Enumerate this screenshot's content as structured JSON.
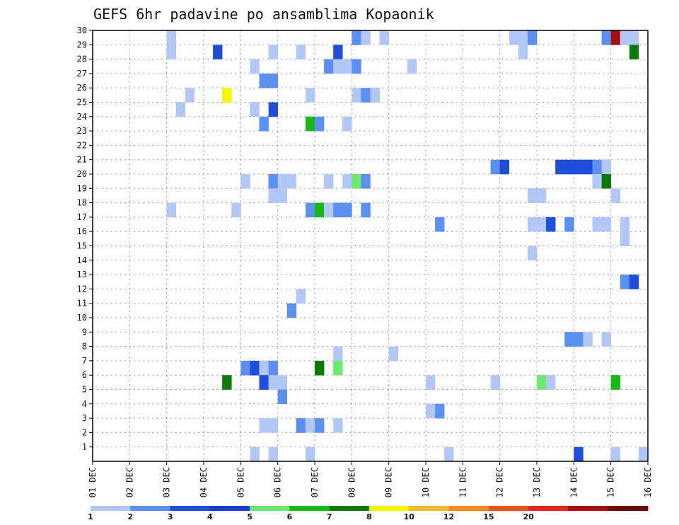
{
  "chart_data": {
    "type": "heatmap",
    "title": "GEFS 6hr padavine po ansamblima Kopaonik",
    "xlabel": "",
    "ylabel": "",
    "x_range": [
      0,
      60
    ],
    "y_range": [
      0,
      30
    ],
    "x_ticks": [
      {
        "label": "01 DEC",
        "x": 0
      },
      {
        "label": "02 DEC",
        "x": 4
      },
      {
        "label": "03 DEC",
        "x": 8
      },
      {
        "label": "04 DEC",
        "x": 12
      },
      {
        "label": "05 DEC",
        "x": 16
      },
      {
        "label": "06 DEC",
        "x": 20
      },
      {
        "label": "07 DEC",
        "x": 24
      },
      {
        "label": "08 DEC",
        "x": 28
      },
      {
        "label": "09 DEC",
        "x": 32
      },
      {
        "label": "10 DEC",
        "x": 36
      },
      {
        "label": "11 DEC",
        "x": 40
      },
      {
        "label": "12 DEC",
        "x": 44
      },
      {
        "label": "13 DEC",
        "x": 48
      },
      {
        "label": "14 DEC",
        "x": 52
      },
      {
        "label": "15 DEC",
        "x": 56
      },
      {
        "label": "16 DEC",
        "x": 60
      }
    ],
    "y_ticks": [
      "1",
      "2",
      "3",
      "4",
      "5",
      "6",
      "7",
      "8",
      "9",
      "10",
      "11",
      "12",
      "13",
      "14",
      "15",
      "16",
      "17",
      "18",
      "19",
      "20",
      "21",
      "22",
      "23",
      "24",
      "25",
      "26",
      "27",
      "28",
      "29",
      "30"
    ],
    "grid": true,
    "colorbar": {
      "placement": "bottom",
      "colors": [
        "#b3c7f7",
        "#5b8ff0",
        "#1f4fd8",
        "#1b3bd1",
        "#6fe86f",
        "#17b817",
        "#0b7a0b",
        "#f5f500",
        "#f5b83a",
        "#f58a1f",
        "#e8531f",
        "#d82a1f",
        "#a31010",
        "#6b0a0a"
      ],
      "labels": [
        "1",
        "2",
        "3",
        "4",
        "5",
        "6",
        "7",
        "8",
        "10",
        "12",
        "15",
        "20"
      ]
    },
    "cells": [
      {
        "x": 8,
        "y": 29,
        "c": 0
      },
      {
        "x": 28,
        "y": 29,
        "c": 1
      },
      {
        "x": 29,
        "y": 29,
        "c": 0
      },
      {
        "x": 31,
        "y": 29,
        "c": 0
      },
      {
        "x": 45,
        "y": 29,
        "c": 0
      },
      {
        "x": 46,
        "y": 29,
        "c": 0
      },
      {
        "x": 47,
        "y": 29,
        "c": 1
      },
      {
        "x": 55,
        "y": 29,
        "c": 1
      },
      {
        "x": 56,
        "y": 29,
        "c": 12
      },
      {
        "x": 57,
        "y": 29,
        "c": 0
      },
      {
        "x": 58,
        "y": 29,
        "c": 0
      },
      {
        "x": 8,
        "y": 28,
        "c": 0
      },
      {
        "x": 13,
        "y": 28,
        "c": 2
      },
      {
        "x": 19,
        "y": 28,
        "c": 0
      },
      {
        "x": 22,
        "y": 28,
        "c": 0
      },
      {
        "x": 26,
        "y": 28,
        "c": 2
      },
      {
        "x": 46,
        "y": 28,
        "c": 0
      },
      {
        "x": 58,
        "y": 28,
        "c": 6
      },
      {
        "x": 17,
        "y": 27,
        "c": 0
      },
      {
        "x": 25,
        "y": 27,
        "c": 1
      },
      {
        "x": 26,
        "y": 27,
        "c": 0
      },
      {
        "x": 27,
        "y": 27,
        "c": 0
      },
      {
        "x": 28,
        "y": 27,
        "c": 1
      },
      {
        "x": 34,
        "y": 27,
        "c": 0
      },
      {
        "x": 18,
        "y": 26,
        "c": 1
      },
      {
        "x": 19,
        "y": 26,
        "c": 1
      },
      {
        "x": 10,
        "y": 25,
        "c": 0
      },
      {
        "x": 14,
        "y": 25,
        "c": 7
      },
      {
        "x": 23,
        "y": 25,
        "c": 0
      },
      {
        "x": 28,
        "y": 25,
        "c": 0
      },
      {
        "x": 29,
        "y": 25,
        "c": 1
      },
      {
        "x": 30,
        "y": 25,
        "c": 0
      },
      {
        "x": 9,
        "y": 24,
        "c": 0
      },
      {
        "x": 17,
        "y": 24,
        "c": 0
      },
      {
        "x": 19,
        "y": 24,
        "c": 2
      },
      {
        "x": 18,
        "y": 23,
        "c": 1
      },
      {
        "x": 23,
        "y": 23,
        "c": 5
      },
      {
        "x": 24,
        "y": 23,
        "c": 1
      },
      {
        "x": 27,
        "y": 23,
        "c": 0
      },
      {
        "x": 43,
        "y": 20,
        "c": 1
      },
      {
        "x": 44,
        "y": 20,
        "c": 2
      },
      {
        "x": 50,
        "y": 20,
        "c": 2
      },
      {
        "x": 51,
        "y": 20,
        "c": 2
      },
      {
        "x": 52,
        "y": 20,
        "c": 2
      },
      {
        "x": 53,
        "y": 20,
        "c": 2
      },
      {
        "x": 54,
        "y": 20,
        "c": 1
      },
      {
        "x": 55,
        "y": 20,
        "c": 0
      },
      {
        "x": 16,
        "y": 19,
        "c": 0
      },
      {
        "x": 19,
        "y": 19,
        "c": 1
      },
      {
        "x": 20,
        "y": 19,
        "c": 0
      },
      {
        "x": 21,
        "y": 19,
        "c": 0
      },
      {
        "x": 25,
        "y": 19,
        "c": 0
      },
      {
        "x": 27,
        "y": 19,
        "c": 0
      },
      {
        "x": 28,
        "y": 19,
        "c": 4
      },
      {
        "x": 29,
        "y": 19,
        "c": 1
      },
      {
        "x": 54,
        "y": 19,
        "c": 0
      },
      {
        "x": 55,
        "y": 19,
        "c": 6
      },
      {
        "x": 19,
        "y": 18,
        "c": 0
      },
      {
        "x": 20,
        "y": 18,
        "c": 0
      },
      {
        "x": 47,
        "y": 18,
        "c": 0
      },
      {
        "x": 48,
        "y": 18,
        "c": 0
      },
      {
        "x": 56,
        "y": 18,
        "c": 0
      },
      {
        "x": 8,
        "y": 17,
        "c": 0
      },
      {
        "x": 15,
        "y": 17,
        "c": 0
      },
      {
        "x": 23,
        "y": 17,
        "c": 1
      },
      {
        "x": 24,
        "y": 17,
        "c": 5
      },
      {
        "x": 25,
        "y": 17,
        "c": 0
      },
      {
        "x": 26,
        "y": 17,
        "c": 1
      },
      {
        "x": 27,
        "y": 17,
        "c": 1
      },
      {
        "x": 29,
        "y": 17,
        "c": 1
      },
      {
        "x": 37,
        "y": 16,
        "c": 1
      },
      {
        "x": 47,
        "y": 16,
        "c": 0
      },
      {
        "x": 48,
        "y": 16,
        "c": 0
      },
      {
        "x": 49,
        "y": 16,
        "c": 2
      },
      {
        "x": 51,
        "y": 16,
        "c": 1
      },
      {
        "x": 54,
        "y": 16,
        "c": 0
      },
      {
        "x": 55,
        "y": 16,
        "c": 0
      },
      {
        "x": 57,
        "y": 16,
        "c": 0
      },
      {
        "x": 47,
        "y": 14,
        "c": 0
      },
      {
        "x": 57,
        "y": 15,
        "c": 0
      },
      {
        "x": 57,
        "y": 12,
        "c": 1
      },
      {
        "x": 58,
        "y": 12,
        "c": 2
      },
      {
        "x": 22,
        "y": 11,
        "c": 0
      },
      {
        "x": 21,
        "y": 10,
        "c": 1
      },
      {
        "x": 51,
        "y": 8,
        "c": 1
      },
      {
        "x": 52,
        "y": 8,
        "c": 1
      },
      {
        "x": 53,
        "y": 8,
        "c": 0
      },
      {
        "x": 55,
        "y": 8,
        "c": 0
      },
      {
        "x": 26,
        "y": 7,
        "c": 0
      },
      {
        "x": 32,
        "y": 7,
        "c": 0
      },
      {
        "x": 16,
        "y": 6,
        "c": 1
      },
      {
        "x": 17,
        "y": 6,
        "c": 2
      },
      {
        "x": 18,
        "y": 6,
        "c": 0
      },
      {
        "x": 19,
        "y": 6,
        "c": 1
      },
      {
        "x": 24,
        "y": 6,
        "c": 6
      },
      {
        "x": 26,
        "y": 6,
        "c": 4
      },
      {
        "x": 14,
        "y": 5,
        "c": 6
      },
      {
        "x": 18,
        "y": 5,
        "c": 2
      },
      {
        "x": 19,
        "y": 5,
        "c": 0
      },
      {
        "x": 20,
        "y": 5,
        "c": 0
      },
      {
        "x": 36,
        "y": 5,
        "c": 0
      },
      {
        "x": 43,
        "y": 5,
        "c": 0
      },
      {
        "x": 48,
        "y": 5,
        "c": 4
      },
      {
        "x": 49,
        "y": 5,
        "c": 0
      },
      {
        "x": 56,
        "y": 5,
        "c": 5
      },
      {
        "x": 20,
        "y": 4,
        "c": 1
      },
      {
        "x": 36,
        "y": 3,
        "c": 0
      },
      {
        "x": 37,
        "y": 3,
        "c": 1
      },
      {
        "x": 18,
        "y": 2,
        "c": 0
      },
      {
        "x": 19,
        "y": 2,
        "c": 0
      },
      {
        "x": 22,
        "y": 2,
        "c": 1
      },
      {
        "x": 23,
        "y": 2,
        "c": 0
      },
      {
        "x": 24,
        "y": 2,
        "c": 1
      },
      {
        "x": 26,
        "y": 2,
        "c": 0
      },
      {
        "x": 17,
        "y": 0,
        "c": 0
      },
      {
        "x": 19,
        "y": 0,
        "c": 0
      },
      {
        "x": 23,
        "y": 0,
        "c": 0
      },
      {
        "x": 38,
        "y": 0,
        "c": 0
      },
      {
        "x": 52,
        "y": 0,
        "c": 2
      },
      {
        "x": 56,
        "y": 0,
        "c": 0
      },
      {
        "x": 59,
        "y": 0,
        "c": 0
      }
    ]
  }
}
